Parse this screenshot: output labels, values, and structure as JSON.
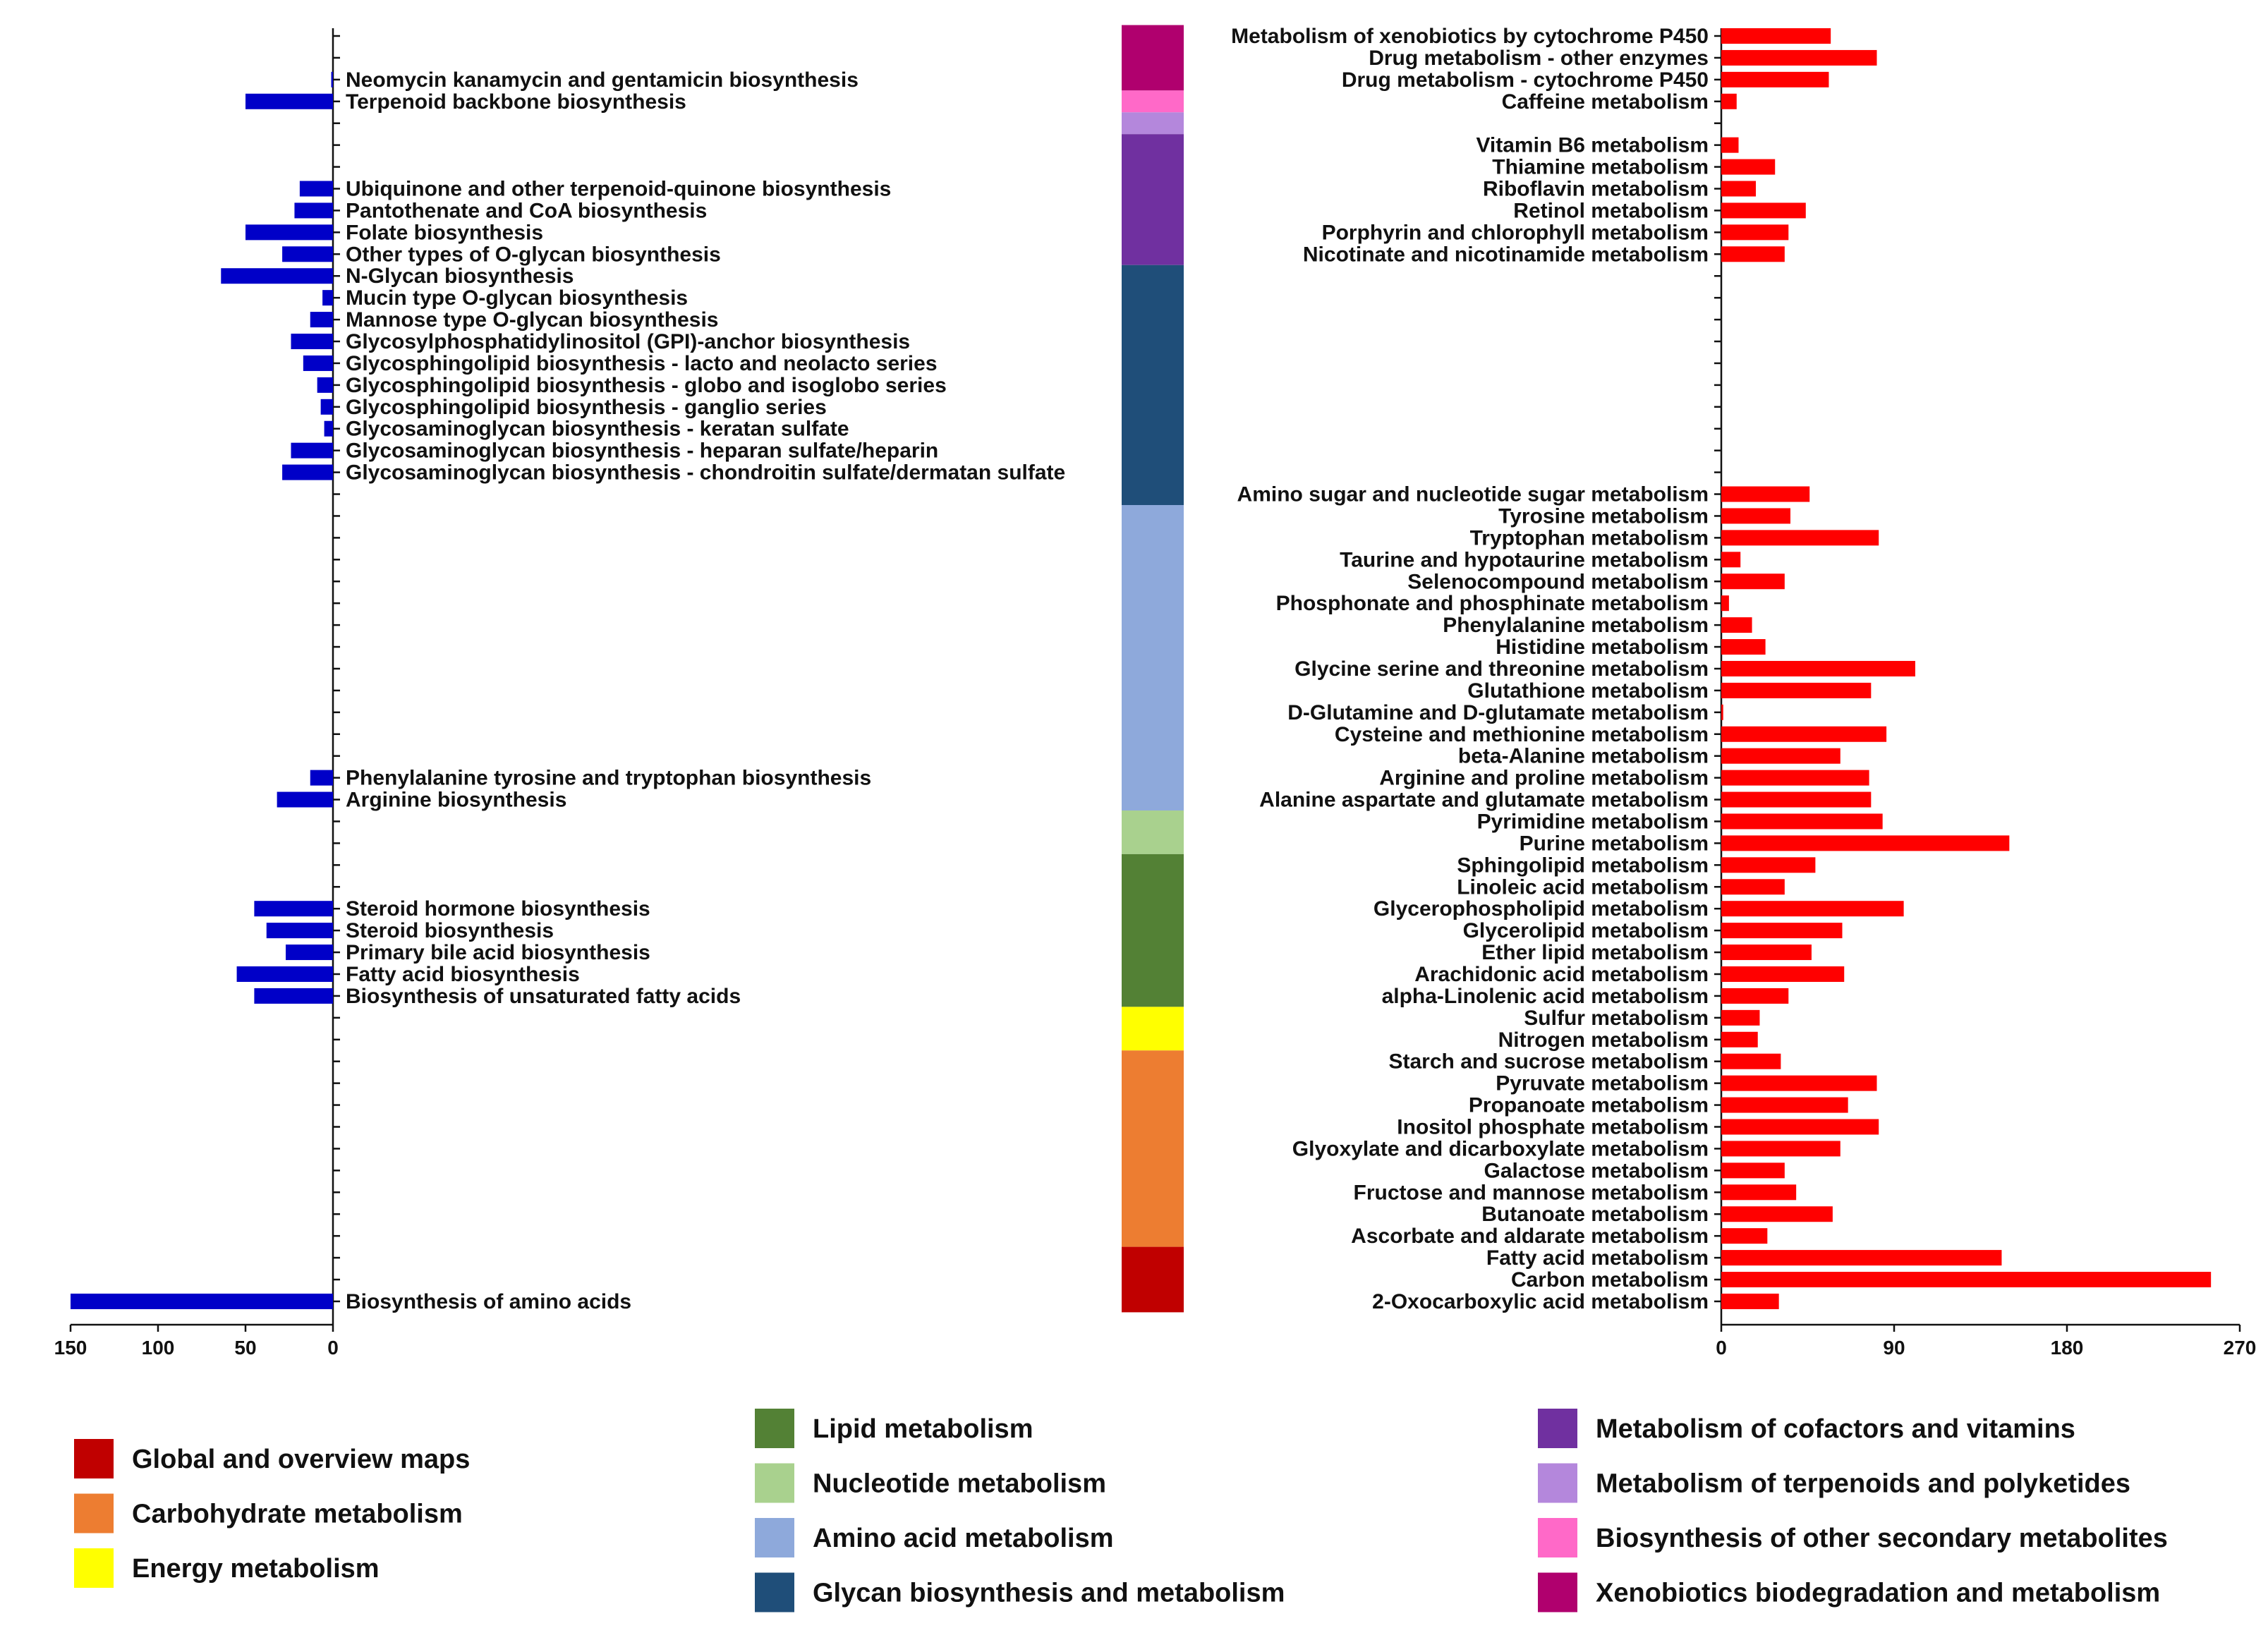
{
  "chart_data": [
    {
      "type": "bar",
      "orientation": "horizontal-reversed",
      "name": "left-panel",
      "xlim": [
        150,
        0
      ],
      "xticks": [
        "150",
        "100",
        "50",
        "0"
      ],
      "labels_side": "right",
      "rows": 59,
      "bars": [
        {
          "row": 3,
          "label": "Neomycin kanamycin and gentamicin biosynthesis",
          "value": 1
        },
        {
          "row": 4,
          "label": "Terpenoid backbone biosynthesis",
          "value": 50
        },
        {
          "row": 8,
          "label": "Ubiquinone and other terpenoid-quinone biosynthesis",
          "value": 19
        },
        {
          "row": 9,
          "label": "Pantothenate and CoA biosynthesis",
          "value": 22
        },
        {
          "row": 10,
          "label": "Folate biosynthesis",
          "value": 50
        },
        {
          "row": 11,
          "label": "Other types of O-glycan biosynthesis",
          "value": 29
        },
        {
          "row": 12,
          "label": "N-Glycan biosynthesis",
          "value": 64
        },
        {
          "row": 13,
          "label": "Mucin type O-glycan biosynthesis",
          "value": 6
        },
        {
          "row": 14,
          "label": "Mannose type O-glycan biosynthesis",
          "value": 13
        },
        {
          "row": 15,
          "label": "Glycosylphosphatidylinositol (GPI)-anchor biosynthesis",
          "value": 24
        },
        {
          "row": 16,
          "label": "Glycosphingolipid biosynthesis - lacto and neolacto series",
          "value": 17
        },
        {
          "row": 17,
          "label": "Glycosphingolipid biosynthesis - globo and isoglobo series",
          "value": 9
        },
        {
          "row": 18,
          "label": "Glycosphingolipid biosynthesis - ganglio series",
          "value": 7
        },
        {
          "row": 19,
          "label": "Glycosaminoglycan biosynthesis - keratan sulfate",
          "value": 5
        },
        {
          "row": 20,
          "label": "Glycosaminoglycan biosynthesis - heparan sulfate/heparin",
          "value": 24
        },
        {
          "row": 21,
          "label": "Glycosaminoglycan biosynthesis - chondroitin sulfate/dermatan sulfate",
          "value": 29
        },
        {
          "row": 35,
          "label": "Phenylalanine tyrosine and tryptophan biosynthesis",
          "value": 13
        },
        {
          "row": 36,
          "label": "Arginine biosynthesis",
          "value": 32
        },
        {
          "row": 41,
          "label": "Steroid hormone biosynthesis",
          "value": 45
        },
        {
          "row": 42,
          "label": "Steroid biosynthesis",
          "value": 38
        },
        {
          "row": 43,
          "label": "Primary bile acid biosynthesis",
          "value": 27
        },
        {
          "row": 44,
          "label": "Fatty acid biosynthesis",
          "value": 55
        },
        {
          "row": 45,
          "label": "Biosynthesis of unsaturated fatty acids",
          "value": 45
        },
        {
          "row": 59,
          "label": "Biosynthesis of amino acids",
          "value": 150
        }
      ]
    },
    {
      "type": "bar",
      "orientation": "horizontal",
      "name": "right-panel",
      "xlim": [
        0,
        270
      ],
      "xticks": [
        "0",
        "90",
        "180",
        "270"
      ],
      "labels_side": "left",
      "rows": 59,
      "bars": [
        {
          "row": 1,
          "label": "Metabolism of xenobiotics by cytochrome P450",
          "value": 57
        },
        {
          "row": 2,
          "label": "Drug metabolism - other enzymes",
          "value": 81
        },
        {
          "row": 3,
          "label": "Drug metabolism - cytochrome P450",
          "value": 56
        },
        {
          "row": 4,
          "label": "Caffeine metabolism",
          "value": 8
        },
        {
          "row": 6,
          "label": "Vitamin B6 metabolism",
          "value": 9
        },
        {
          "row": 7,
          "label": "Thiamine metabolism",
          "value": 28
        },
        {
          "row": 8,
          "label": "Riboflavin metabolism",
          "value": 18
        },
        {
          "row": 9,
          "label": "Retinol metabolism",
          "value": 44
        },
        {
          "row": 10,
          "label": "Porphyrin and chlorophyll metabolism",
          "value": 35
        },
        {
          "row": 11,
          "label": "Nicotinate and nicotinamide metabolism",
          "value": 33
        },
        {
          "row": 22,
          "label": "Amino sugar and nucleotide sugar metabolism",
          "value": 46
        },
        {
          "row": 23,
          "label": "Tyrosine metabolism",
          "value": 36
        },
        {
          "row": 24,
          "label": "Tryptophan metabolism",
          "value": 82
        },
        {
          "row": 25,
          "label": "Taurine and hypotaurine metabolism",
          "value": 10
        },
        {
          "row": 26,
          "label": "Selenocompound metabolism",
          "value": 33
        },
        {
          "row": 27,
          "label": "Phosphonate and phosphinate metabolism",
          "value": 4
        },
        {
          "row": 28,
          "label": "Phenylalanine metabolism",
          "value": 16
        },
        {
          "row": 29,
          "label": "Histidine metabolism",
          "value": 23
        },
        {
          "row": 30,
          "label": "Glycine serine and threonine metabolism",
          "value": 101
        },
        {
          "row": 31,
          "label": "Glutathione metabolism",
          "value": 78
        },
        {
          "row": 32,
          "label": "D-Glutamine and D-glutamate metabolism",
          "value": 1
        },
        {
          "row": 33,
          "label": "Cysteine and methionine metabolism",
          "value": 86
        },
        {
          "row": 34,
          "label": "beta-Alanine metabolism",
          "value": 62
        },
        {
          "row": 35,
          "label": "Arginine and proline metabolism",
          "value": 77
        },
        {
          "row": 36,
          "label": "Alanine aspartate and glutamate metabolism",
          "value": 78
        },
        {
          "row": 37,
          "label": "Pyrimidine metabolism",
          "value": 84
        },
        {
          "row": 38,
          "label": "Purine metabolism",
          "value": 150
        },
        {
          "row": 39,
          "label": "Sphingolipid metabolism",
          "value": 49
        },
        {
          "row": 40,
          "label": "Linoleic acid metabolism",
          "value": 33
        },
        {
          "row": 41,
          "label": "Glycerophospholipid metabolism",
          "value": 95
        },
        {
          "row": 42,
          "label": "Glycerolipid metabolism",
          "value": 63
        },
        {
          "row": 43,
          "label": "Ether lipid metabolism",
          "value": 47
        },
        {
          "row": 44,
          "label": "Arachidonic acid metabolism",
          "value": 64
        },
        {
          "row": 45,
          "label": "alpha-Linolenic acid metabolism",
          "value": 35
        },
        {
          "row": 46,
          "label": "Sulfur metabolism",
          "value": 20
        },
        {
          "row": 47,
          "label": "Nitrogen metabolism",
          "value": 19
        },
        {
          "row": 48,
          "label": "Starch and sucrose metabolism",
          "value": 31
        },
        {
          "row": 49,
          "label": "Pyruvate metabolism",
          "value": 81
        },
        {
          "row": 50,
          "label": "Propanoate metabolism",
          "value": 66
        },
        {
          "row": 51,
          "label": "Inositol phosphate metabolism",
          "value": 82
        },
        {
          "row": 52,
          "label": "Glyoxylate and dicarboxylate metabolism",
          "value": 62
        },
        {
          "row": 53,
          "label": "Galactose metabolism",
          "value": 33
        },
        {
          "row": 54,
          "label": "Fructose and mannose metabolism",
          "value": 39
        },
        {
          "row": 55,
          "label": "Butanoate metabolism",
          "value": 58
        },
        {
          "row": 56,
          "label": "Ascorbate and aldarate metabolism",
          "value": 24
        },
        {
          "row": 57,
          "label": "Fatty acid metabolism",
          "value": 146
        },
        {
          "row": 58,
          "label": "Carbon metabolism",
          "value": 255
        },
        {
          "row": 59,
          "label": "2-Oxocarboxylic acid metabolism",
          "value": 30
        }
      ]
    }
  ],
  "categories_band": [
    {
      "name": "Xenobiotics biodegradation and metabolism",
      "color": "#B0006E",
      "from_row": 1,
      "to_row": 3
    },
    {
      "name": "Biosynthesis of other secondary metabolites",
      "color": "#FF69C8",
      "from_row": 4,
      "to_row": 4
    },
    {
      "name": "Metabolism of terpenoids and polyketides",
      "color": "#B487DC",
      "from_row": 5,
      "to_row": 5
    },
    {
      "name": "Metabolism of cofactors and vitamins",
      "color": "#7030A0",
      "from_row": 6,
      "to_row": 11
    },
    {
      "name": "Glycan biosynthesis and metabolism",
      "color": "#1F4E79",
      "from_row": 12,
      "to_row": 22
    },
    {
      "name": "Amino acid metabolism",
      "color": "#8EA9DB",
      "from_row": 23,
      "to_row": 36
    },
    {
      "name": "Nucleotide metabolism",
      "color": "#A9D18E",
      "from_row": 37,
      "to_row": 38
    },
    {
      "name": "Lipid metabolism",
      "color": "#538135",
      "from_row": 39,
      "to_row": 45
    },
    {
      "name": "Energy metabolism",
      "color": "#FFFF00",
      "from_row": 46,
      "to_row": 47
    },
    {
      "name": "Carbohydrate metabolism",
      "color": "#ED7D31",
      "from_row": 48,
      "to_row": 56
    },
    {
      "name": "Global and overview maps",
      "color": "#C00000",
      "from_row": 57,
      "to_row": 59
    }
  ],
  "legend": [
    {
      "label": "Global and overview maps",
      "color": "#C00000"
    },
    {
      "label": "Carbohydrate metabolism",
      "color": "#ED7D31"
    },
    {
      "label": "Energy metabolism",
      "color": "#FFFF00"
    },
    {
      "label": "Lipid metabolism",
      "color": "#538135"
    },
    {
      "label": "Nucleotide metabolism",
      "color": "#A9D18E"
    },
    {
      "label": "Amino acid metabolism",
      "color": "#8EA9DB"
    },
    {
      "label": "Glycan biosynthesis and metabolism",
      "color": "#1F4E79"
    },
    {
      "label": "Metabolism of cofactors and vitamins",
      "color": "#7030A0"
    },
    {
      "label": "Metabolism of terpenoids and polyketides",
      "color": "#B487DC"
    },
    {
      "label": "Biosynthesis of other secondary metabolites",
      "color": "#FF69C8"
    },
    {
      "label": "Xenobiotics biodegradation and metabolism",
      "color": "#B0006E"
    }
  ],
  "colors": {
    "left_bar": "#0000C8",
    "right_bar": "#FF0000",
    "axis": "#111111"
  }
}
